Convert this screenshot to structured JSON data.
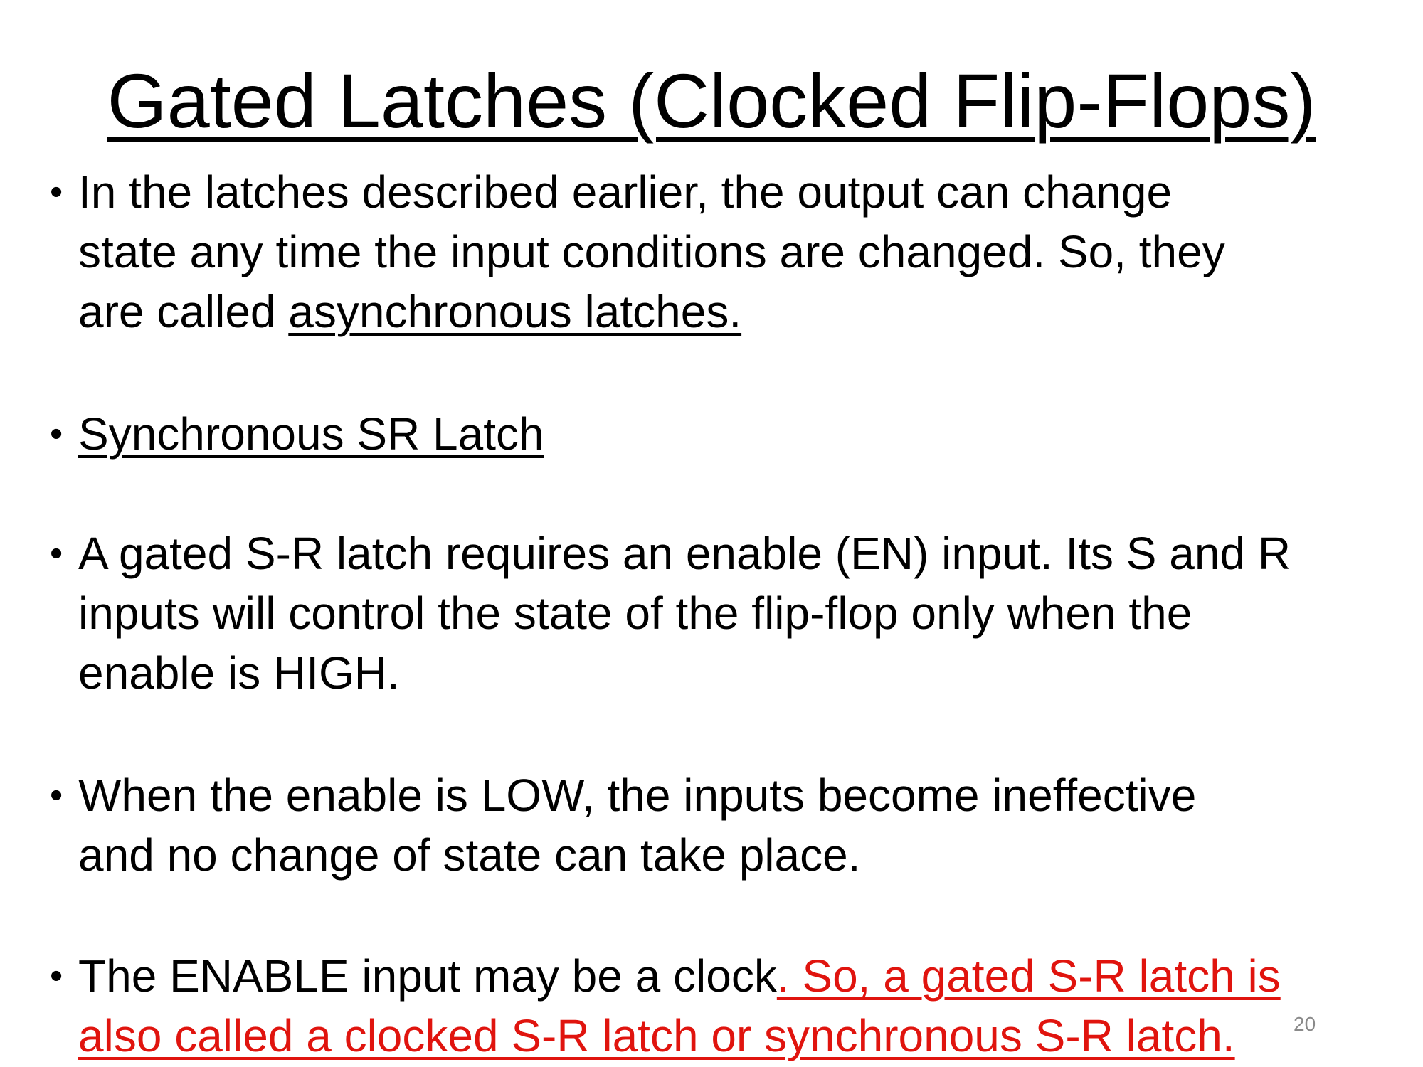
{
  "slide": {
    "title": "Gated Latches (Clocked Flip-Flops)",
    "bullet_symbol": "•",
    "bullets": [
      {
        "lines": [
          "In the latches described earlier, the output can change",
          "state any time the input conditions are changed. So, they"
        ],
        "last_line_prefix": "are called ",
        "last_line_underlined": "asynchronous latches."
      },
      {
        "underlined": "Synchronous SR Latch"
      },
      {
        "lines": [
          "A gated S-R latch requires an enable (EN) input. Its S and R",
          "inputs will control the state of the flip-flop only when the",
          "enable is HIGH."
        ]
      },
      {
        "lines": [
          "When the enable is LOW, the inputs become ineffective",
          "and no change of state can take place."
        ]
      },
      {
        "first_line_prefix": "The ENABLE input may be a clock",
        "first_line_red": ". So, a gated S-R latch is",
        "second_line_red": "also called a clocked S-R latch or synchronous S-R latch."
      }
    ],
    "page_number": "20",
    "accent_color": "#e0140e"
  }
}
